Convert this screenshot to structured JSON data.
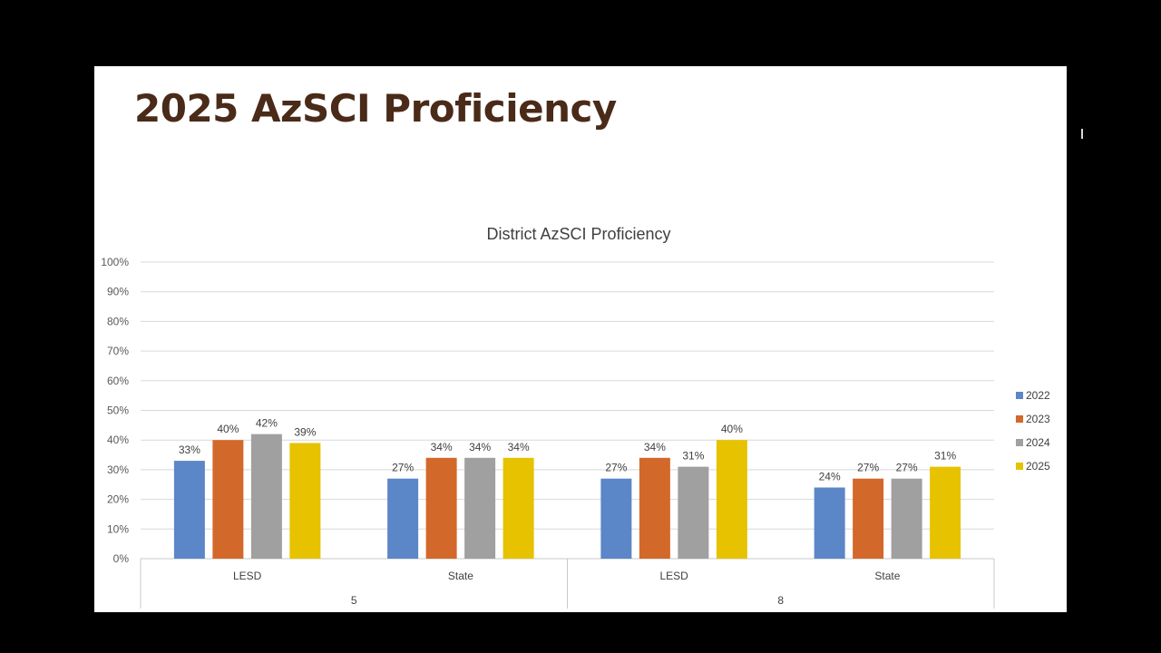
{
  "slide": {
    "title": "2025 AzSCI Proficiency"
  },
  "chart_data": {
    "type": "bar",
    "title": "District AzSCI Proficiency",
    "xlabel": "",
    "ylabel": "",
    "ylim": [
      0,
      100
    ],
    "yticks": [
      "0%",
      "10%",
      "20%",
      "30%",
      "40%",
      "50%",
      "60%",
      "70%",
      "80%",
      "90%",
      "100%"
    ],
    "categories": [
      "LESD",
      "State",
      "LESD",
      "State"
    ],
    "groups": [
      {
        "label": "5",
        "categories": [
          "LESD",
          "State"
        ]
      },
      {
        "label": "8",
        "categories": [
          "LESD",
          "State"
        ]
      }
    ],
    "series": [
      {
        "name": "2022",
        "color": "#5b86c8",
        "values": [
          33,
          27,
          27,
          24
        ]
      },
      {
        "name": "2023",
        "color": "#d2692a",
        "values": [
          40,
          34,
          34,
          27
        ]
      },
      {
        "name": "2024",
        "color": "#a0a0a0",
        "values": [
          42,
          34,
          31,
          27
        ]
      },
      {
        "name": "2025",
        "color": "#e6c200",
        "values": [
          39,
          34,
          40,
          31
        ]
      }
    ],
    "value_suffix": "%",
    "grid": true,
    "legend_position": "right"
  }
}
